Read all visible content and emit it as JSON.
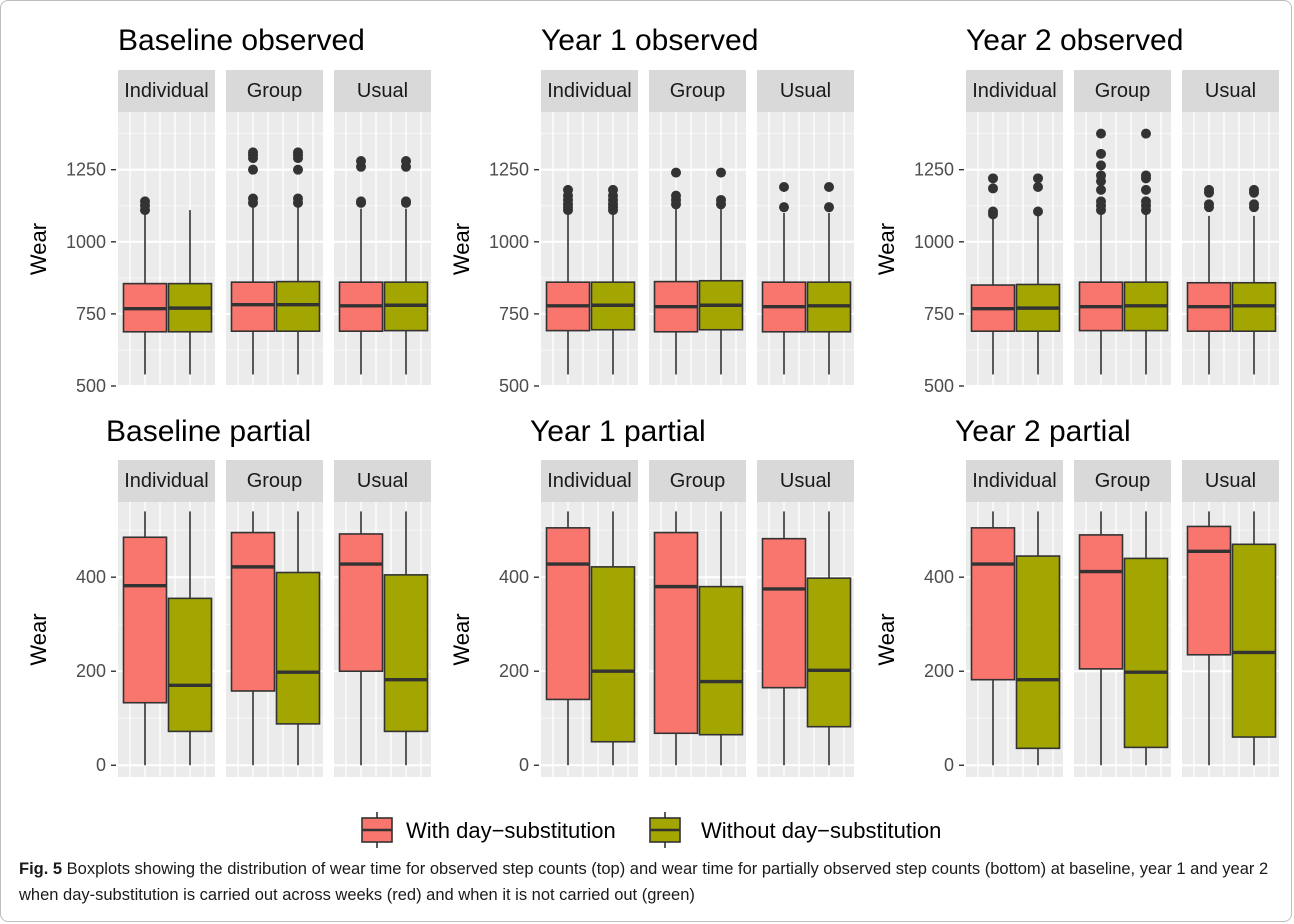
{
  "chart_data": {
    "type": "boxplot",
    "facet_labels": [
      "Individual",
      "Group",
      "Usual"
    ],
    "legend": {
      "position": "bottom",
      "entries": [
        {
          "label": "With day−substitution",
          "color": "#F8766D"
        },
        {
          "label": "Without day−substitution",
          "color": "#A3A500"
        }
      ]
    },
    "panels": [
      {
        "title": "Baseline observed",
        "ylabel": "Wear",
        "ylim": [
          500,
          1450
        ],
        "yticks": [
          500,
          750,
          1000,
          1250
        ],
        "facets": [
          {
            "name": "Individual",
            "boxes": [
              {
                "series": "With day−substitution",
                "min": 540,
                "q1": 688,
                "median": 768,
                "q3": 855,
                "max": 1105,
                "outliers": [
                  1110,
                  1125,
                  1140
                ]
              },
              {
                "series": "Without day−substitution",
                "min": 540,
                "q1": 688,
                "median": 770,
                "q3": 855,
                "max": 1110,
                "outliers": []
              }
            ]
          },
          {
            "name": "Group",
            "boxes": [
              {
                "series": "With day−substitution",
                "min": 540,
                "q1": 690,
                "median": 782,
                "q3": 860,
                "max": 1120,
                "outliers": [
                  1135,
                  1150,
                  1250,
                  1290,
                  1300,
                  1310
                ]
              },
              {
                "series": "Without day−substitution",
                "min": 540,
                "q1": 690,
                "median": 782,
                "q3": 862,
                "max": 1120,
                "outliers": [
                  1135,
                  1150,
                  1250,
                  1290,
                  1300,
                  1310
                ]
              }
            ]
          },
          {
            "name": "Usual",
            "boxes": [
              {
                "series": "With day−substitution",
                "min": 540,
                "q1": 690,
                "median": 778,
                "q3": 860,
                "max": 1115,
                "outliers": [
                  1135,
                  1140,
                  1260,
                  1280
                ]
              },
              {
                "series": "Without day−substitution",
                "min": 540,
                "q1": 692,
                "median": 780,
                "q3": 860,
                "max": 1115,
                "outliers": [
                  1135,
                  1140,
                  1260,
                  1280
                ]
              }
            ]
          }
        ]
      },
      {
        "title": "Year 1 observed",
        "ylabel": "Wear",
        "ylim": [
          500,
          1450
        ],
        "yticks": [
          500,
          750,
          1000,
          1250
        ],
        "facets": [
          {
            "name": "Individual",
            "boxes": [
              {
                "series": "With day−substitution",
                "min": 540,
                "q1": 692,
                "median": 778,
                "q3": 860,
                "max": 1095,
                "outliers": [
                  1110,
                  1120,
                  1130,
                  1145,
                  1160,
                  1180
                ]
              },
              {
                "series": "Without day−substitution",
                "min": 540,
                "q1": 695,
                "median": 780,
                "q3": 860,
                "max": 1095,
                "outliers": [
                  1110,
                  1120,
                  1130,
                  1145,
                  1160,
                  1180
                ]
              }
            ]
          },
          {
            "name": "Group",
            "boxes": [
              {
                "series": "With day−substitution",
                "min": 540,
                "q1": 688,
                "median": 775,
                "q3": 862,
                "max": 1115,
                "outliers": [
                  1130,
                  1145,
                  1160,
                  1240
                ]
              },
              {
                "series": "Without day−substitution",
                "min": 540,
                "q1": 695,
                "median": 780,
                "q3": 865,
                "max": 1115,
                "outliers": [
                  1130,
                  1145,
                  1240
                ]
              }
            ]
          },
          {
            "name": "Usual",
            "boxes": [
              {
                "series": "With day−substitution",
                "min": 540,
                "q1": 688,
                "median": 775,
                "q3": 860,
                "max": 1100,
                "outliers": [
                  1120,
                  1190
                ]
              },
              {
                "series": "Without day−substitution",
                "min": 540,
                "q1": 688,
                "median": 778,
                "q3": 860,
                "max": 1100,
                "outliers": [
                  1120,
                  1190
                ]
              }
            ]
          }
        ]
      },
      {
        "title": "Year 2 observed",
        "ylabel": "Wear",
        "ylim": [
          500,
          1450
        ],
        "yticks": [
          500,
          750,
          1000,
          1250
        ],
        "facets": [
          {
            "name": "Individual",
            "boxes": [
              {
                "series": "With day−substitution",
                "min": 540,
                "q1": 690,
                "median": 768,
                "q3": 850,
                "max": 1085,
                "outliers": [
                  1095,
                  1105,
                  1185,
                  1220
                ]
              },
              {
                "series": "Without day−substitution",
                "min": 540,
                "q1": 690,
                "median": 770,
                "q3": 852,
                "max": 1095,
                "outliers": [
                  1105,
                  1190,
                  1220
                ]
              }
            ]
          },
          {
            "name": "Group",
            "boxes": [
              {
                "series": "With day−substitution",
                "min": 540,
                "q1": 692,
                "median": 775,
                "q3": 860,
                "max": 1100,
                "outliers": [
                  1110,
                  1125,
                  1140,
                  1180,
                  1210,
                  1230,
                  1265,
                  1305,
                  1375
                ]
              },
              {
                "series": "Without day−substitution",
                "min": 540,
                "q1": 692,
                "median": 778,
                "q3": 860,
                "max": 1100,
                "outliers": [
                  1110,
                  1125,
                  1140,
                  1180,
                  1220,
                  1230,
                  1375
                ]
              }
            ]
          },
          {
            "name": "Usual",
            "boxes": [
              {
                "series": "With day−substitution",
                "min": 540,
                "q1": 690,
                "median": 775,
                "q3": 858,
                "max": 1090,
                "outliers": [
                  1120,
                  1130,
                  1170,
                  1180
                ]
              },
              {
                "series": "Without day−substitution",
                "min": 540,
                "q1": 690,
                "median": 778,
                "q3": 858,
                "max": 1090,
                "outliers": [
                  1120,
                  1130,
                  1170,
                  1180
                ]
              }
            ]
          }
        ]
      },
      {
        "title": "Baseline partial",
        "ylabel": "Wear",
        "ylim": [
          -25,
          560
        ],
        "yticks": [
          0,
          200,
          400
        ],
        "facets": [
          {
            "name": "Individual",
            "boxes": [
              {
                "series": "With day−substitution",
                "min": 0,
                "q1": 133,
                "median": 382,
                "q3": 485,
                "max": 540,
                "outliers": []
              },
              {
                "series": "Without day−substitution",
                "min": 0,
                "q1": 72,
                "median": 170,
                "q3": 355,
                "max": 540,
                "outliers": []
              }
            ]
          },
          {
            "name": "Group",
            "boxes": [
              {
                "series": "With day−substitution",
                "min": 0,
                "q1": 158,
                "median": 422,
                "q3": 495,
                "max": 540,
                "outliers": []
              },
              {
                "series": "Without day−substitution",
                "min": 0,
                "q1": 88,
                "median": 198,
                "q3": 410,
                "max": 540,
                "outliers": []
              }
            ]
          },
          {
            "name": "Usual",
            "boxes": [
              {
                "series": "With day−substitution",
                "min": 0,
                "q1": 200,
                "median": 428,
                "q3": 492,
                "max": 540,
                "outliers": []
              },
              {
                "series": "Without day−substitution",
                "min": 0,
                "q1": 72,
                "median": 182,
                "q3": 405,
                "max": 540,
                "outliers": []
              }
            ]
          }
        ]
      },
      {
        "title": "Year 1 partial",
        "ylabel": "Wear",
        "ylim": [
          -25,
          560
        ],
        "yticks": [
          0,
          200,
          400
        ],
        "facets": [
          {
            "name": "Individual",
            "boxes": [
              {
                "series": "With day−substitution",
                "min": 0,
                "q1": 140,
                "median": 428,
                "q3": 505,
                "max": 540,
                "outliers": []
              },
              {
                "series": "Without day−substitution",
                "min": 0,
                "q1": 50,
                "median": 200,
                "q3": 422,
                "max": 540,
                "outliers": []
              }
            ]
          },
          {
            "name": "Group",
            "boxes": [
              {
                "series": "With day−substitution",
                "min": 0,
                "q1": 68,
                "median": 380,
                "q3": 495,
                "max": 540,
                "outliers": []
              },
              {
                "series": "Without day−substitution",
                "min": 0,
                "q1": 65,
                "median": 178,
                "q3": 380,
                "max": 540,
                "outliers": []
              }
            ]
          },
          {
            "name": "Usual",
            "boxes": [
              {
                "series": "With day−substitution",
                "min": 0,
                "q1": 165,
                "median": 375,
                "q3": 482,
                "max": 540,
                "outliers": []
              },
              {
                "series": "Without day−substitution",
                "min": 0,
                "q1": 82,
                "median": 202,
                "q3": 398,
                "max": 540,
                "outliers": []
              }
            ]
          }
        ]
      },
      {
        "title": "Year 2 partial",
        "ylabel": "Wear",
        "ylim": [
          -25,
          560
        ],
        "yticks": [
          0,
          200,
          400
        ],
        "facets": [
          {
            "name": "Individual",
            "boxes": [
              {
                "series": "With day−substitution",
                "min": 0,
                "q1": 182,
                "median": 428,
                "q3": 505,
                "max": 540,
                "outliers": []
              },
              {
                "series": "Without day−substitution",
                "min": 0,
                "q1": 36,
                "median": 182,
                "q3": 445,
                "max": 540,
                "outliers": []
              }
            ]
          },
          {
            "name": "Group",
            "boxes": [
              {
                "series": "With day−substitution",
                "min": 0,
                "q1": 205,
                "median": 412,
                "q3": 490,
                "max": 540,
                "outliers": []
              },
              {
                "series": "Without day−substitution",
                "min": 0,
                "q1": 38,
                "median": 198,
                "q3": 440,
                "max": 540,
                "outliers": []
              }
            ]
          },
          {
            "name": "Usual",
            "boxes": [
              {
                "series": "With day−substitution",
                "min": 0,
                "q1": 235,
                "median": 455,
                "q3": 508,
                "max": 540,
                "outliers": []
              },
              {
                "series": "Without day−substitution",
                "min": 0,
                "q1": 60,
                "median": 240,
                "q3": 470,
                "max": 540,
                "outliers": []
              }
            ]
          }
        ]
      }
    ]
  },
  "caption": {
    "label": "Fig. 5",
    "text": " Boxplots showing the distribution of wear time for observed step counts (top) and wear time for partially observed step counts (bottom) at baseline, year 1 and year 2 when day-substitution is carried out across weeks (red) and when it is not carried out (green)"
  }
}
